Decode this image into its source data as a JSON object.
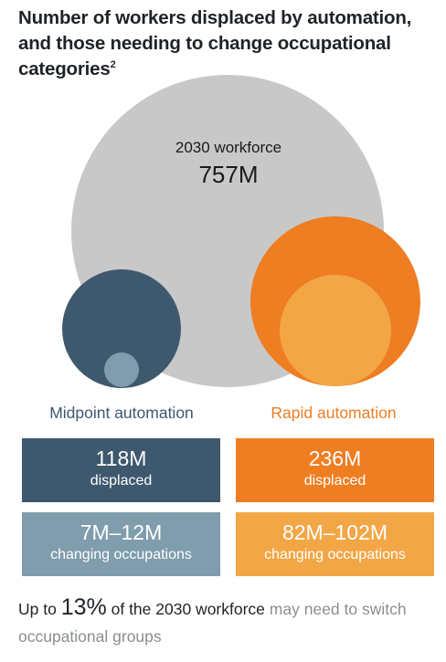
{
  "title": {
    "text": "Number of workers displaced by automation, and those needing to change occupational categories",
    "footnote": "2"
  },
  "colors": {
    "workforce": "#c8c8c8",
    "midpoint_dark": "#3e586e",
    "midpoint_light": "#7f9dad",
    "rapid_dark": "#ef7d22",
    "rapid_light": "#f2a646"
  },
  "workforce": {
    "label": "2030 workforce",
    "value": "757M"
  },
  "chart_data": {
    "type": "bubble",
    "title": "Number of workers displaced by automation, and those needing to change occupational categories",
    "total": {
      "label": "2030 workforce",
      "value_millions": 757
    },
    "series": [
      {
        "name": "Midpoint automation",
        "displaced_millions": 118,
        "changing_occupations_millions": [
          7,
          12
        ]
      },
      {
        "name": "Rapid automation",
        "displaced_millions": 236,
        "changing_occupations_millions": [
          82,
          102
        ]
      }
    ]
  },
  "midpoint": {
    "name": "Midpoint automation",
    "displaced_value": "118M",
    "displaced_label": "displaced",
    "changing_value": "7M–12M",
    "changing_label": "changing occupations"
  },
  "rapid": {
    "name": "Rapid automation",
    "displaced_value": "236M",
    "displaced_label": "displaced",
    "changing_value": "82M–102M",
    "changing_label": "changing occupations"
  },
  "footer": {
    "prefix": "Up to ",
    "percent": "13%",
    "middle": " of the 2030 workforce",
    "suffix": " may need to switch occupational groups"
  }
}
